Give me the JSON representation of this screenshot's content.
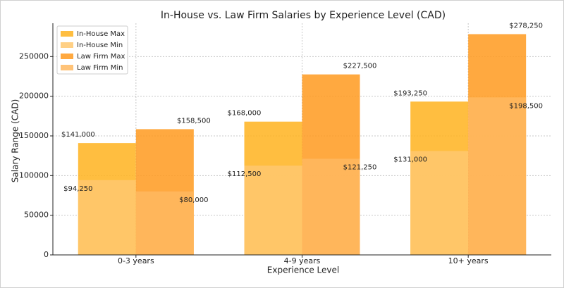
{
  "chart_data": {
    "type": "overlap_bar",
    "title": "In-House vs. Law Firm Salaries by Experience Level (CAD)",
    "x_label": "Experience Level",
    "y_label": "Salary Range (CAD)",
    "categories": [
      "0-3 years",
      "4-9 years",
      "10+ years"
    ],
    "series": [
      {
        "name": "In-House Max",
        "color": "#ffb31f",
        "values": [
          141000,
          168000,
          193250
        ],
        "value_labels": [
          "$141,000",
          "$168,000",
          "$193,250"
        ]
      },
      {
        "name": "In-House Min",
        "color": "#ffc870",
        "values": [
          94250,
          112500,
          131000
        ],
        "value_labels": [
          "$94,250",
          "$112,500",
          "$131,000"
        ]
      },
      {
        "name": "Law Firm Max",
        "color": "#ff9a1e",
        "values": [
          158500,
          227500,
          278250
        ],
        "value_labels": [
          "$158,500",
          "$227,500",
          "$278,250"
        ]
      },
      {
        "name": "Law Firm Min",
        "color": "#ffb860",
        "values": [
          80000,
          121250,
          198500
        ],
        "value_labels": [
          "$80,000",
          "$121,250",
          "$198,500"
        ]
      }
    ],
    "ylim": [
      0,
      292000
    ],
    "yticks": [
      0,
      50000,
      100000,
      150000,
      200000,
      250000
    ],
    "grid": true,
    "legend": "upper left"
  }
}
